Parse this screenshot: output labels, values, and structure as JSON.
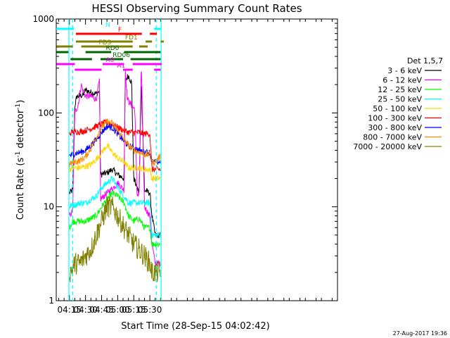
{
  "chart_data": {
    "type": "line",
    "title": "HESSI Observing Summary Count Rates",
    "xlabel": "Start Time (28-Sep-15 04:02:42)",
    "ylabel_pre": "Count Rate (s",
    "ylabel_sup1": "-1",
    "ylabel_mid": " detector",
    "ylabel_sup2": "-1",
    "ylabel_post": ")",
    "ylog": true,
    "ylim": [
      1,
      1000
    ],
    "xlim_min": [
      242.7,
      505
    ],
    "ytick_labels": [
      "1",
      "10",
      "100",
      "1000"
    ],
    "xtick_values": [
      255,
      270,
      285,
      300,
      315,
      330
    ],
    "xtick_labels": [
      "04:15",
      "04:30",
      "04:45",
      "05:00",
      "05:15",
      "05:30"
    ],
    "legend_title": "Det 1,5,7",
    "data_start_min": 255,
    "series": [
      {
        "name": "3 - 6 keV",
        "color": "#000000",
        "values": [
          [
            255,
            14
          ],
          [
            258,
            15
          ],
          [
            260,
            120
          ],
          [
            262,
            150
          ],
          [
            268,
            155
          ],
          [
            270,
            175
          ],
          [
            275,
            165
          ],
          [
            280,
            160
          ],
          [
            283,
            170
          ],
          [
            284,
            22
          ],
          [
            290,
            23
          ],
          [
            295,
            25
          ],
          [
            300,
            22
          ],
          [
            306,
            20
          ],
          [
            307,
            220
          ],
          [
            310,
            250
          ],
          [
            313,
            210
          ],
          [
            315,
            20
          ],
          [
            320,
            14
          ],
          [
            322,
            220
          ],
          [
            325,
            15
          ],
          [
            330,
            14
          ],
          [
            332,
            8
          ],
          [
            335,
            5
          ],
          [
            340,
            5
          ]
        ]
      },
      {
        "name": "6 - 12 keV",
        "color": "#ff00ff",
        "values": [
          [
            255,
            8
          ],
          [
            258,
            9
          ],
          [
            260,
            100
          ],
          [
            263,
            120
          ],
          [
            266,
            200
          ],
          [
            269,
            155
          ],
          [
            272,
            150
          ],
          [
            275,
            150
          ],
          [
            280,
            140
          ],
          [
            283,
            220
          ],
          [
            284,
            12
          ],
          [
            290,
            14
          ],
          [
            296,
            16
          ],
          [
            300,
            18
          ],
          [
            306,
            15
          ],
          [
            307,
            300
          ],
          [
            309,
            140
          ],
          [
            314,
            115
          ],
          [
            316,
            110
          ],
          [
            318,
            14
          ],
          [
            320,
            13
          ],
          [
            322,
            350
          ],
          [
            325,
            10
          ],
          [
            330,
            8
          ],
          [
            332,
            4
          ],
          [
            335,
            2.5
          ],
          [
            340,
            2.5
          ]
        ]
      },
      {
        "name": "12 - 25 keV",
        "color": "#00ff00",
        "values": [
          [
            255,
            6
          ],
          [
            258,
            7
          ],
          [
            260,
            7
          ],
          [
            265,
            7
          ],
          [
            270,
            7
          ],
          [
            275,
            7.5
          ],
          [
            280,
            8
          ],
          [
            285,
            10
          ],
          [
            290,
            12
          ],
          [
            295,
            14
          ],
          [
            300,
            13
          ],
          [
            306,
            11
          ],
          [
            310,
            8
          ],
          [
            315,
            7
          ],
          [
            320,
            7.5
          ],
          [
            325,
            6
          ],
          [
            330,
            6
          ],
          [
            332,
            4
          ],
          [
            335,
            4
          ],
          [
            340,
            4
          ]
        ]
      },
      {
        "name": "25 - 50 keV",
        "color": "#00ffff",
        "values": [
          [
            255,
            10
          ],
          [
            258,
            10.5
          ],
          [
            260,
            10.5
          ],
          [
            265,
            11
          ],
          [
            270,
            11
          ],
          [
            275,
            12
          ],
          [
            280,
            13
          ],
          [
            285,
            16
          ],
          [
            290,
            18
          ],
          [
            295,
            20
          ],
          [
            300,
            16
          ],
          [
            306,
            13
          ],
          [
            310,
            11
          ],
          [
            315,
            11
          ],
          [
            320,
            11
          ],
          [
            325,
            11
          ],
          [
            330,
            11
          ],
          [
            332,
            5
          ],
          [
            335,
            5
          ],
          [
            340,
            5
          ]
        ]
      },
      {
        "name": "50 - 100 keV",
        "color": "#ffd700",
        "values": [
          [
            255,
            25
          ],
          [
            258,
            26
          ],
          [
            260,
            26
          ],
          [
            265,
            26
          ],
          [
            270,
            27
          ],
          [
            275,
            28
          ],
          [
            280,
            32
          ],
          [
            285,
            38
          ],
          [
            290,
            45
          ],
          [
            295,
            38
          ],
          [
            300,
            33
          ],
          [
            306,
            30
          ],
          [
            310,
            26
          ],
          [
            315,
            26
          ],
          [
            320,
            26
          ],
          [
            325,
            25
          ],
          [
            330,
            25
          ],
          [
            332,
            20
          ],
          [
            335,
            20
          ],
          [
            340,
            20
          ]
        ]
      },
      {
        "name": "100 - 300 keV",
        "color": "#ff0000",
        "values": [
          [
            255,
            60
          ],
          [
            258,
            63
          ],
          [
            260,
            63
          ],
          [
            265,
            63
          ],
          [
            270,
            65
          ],
          [
            275,
            68
          ],
          [
            280,
            72
          ],
          [
            285,
            76
          ],
          [
            290,
            80
          ],
          [
            295,
            75
          ],
          [
            300,
            70
          ],
          [
            306,
            65
          ],
          [
            310,
            62
          ],
          [
            315,
            62
          ],
          [
            320,
            62
          ],
          [
            325,
            60
          ],
          [
            330,
            60
          ],
          [
            332,
            25
          ],
          [
            335,
            25
          ],
          [
            340,
            25
          ]
        ]
      },
      {
        "name": "300 - 800 keV",
        "color": "#0000ff",
        "values": [
          [
            255,
            35
          ],
          [
            258,
            36
          ],
          [
            260,
            37
          ],
          [
            265,
            38
          ],
          [
            270,
            40
          ],
          [
            275,
            45
          ],
          [
            280,
            52
          ],
          [
            285,
            62
          ],
          [
            290,
            72
          ],
          [
            295,
            70
          ],
          [
            300,
            60
          ],
          [
            306,
            50
          ],
          [
            310,
            45
          ],
          [
            315,
            42
          ],
          [
            320,
            40
          ],
          [
            325,
            38
          ],
          [
            330,
            38
          ],
          [
            332,
            30
          ],
          [
            335,
            30
          ],
          [
            340,
            30
          ]
        ]
      },
      {
        "name": "800 - 7000 keV",
        "color": "#ff8c00",
        "values": [
          [
            255,
            28
          ],
          [
            258,
            30
          ],
          [
            260,
            30
          ],
          [
            265,
            31
          ],
          [
            270,
            34
          ],
          [
            275,
            42
          ],
          [
            280,
            55
          ],
          [
            285,
            70
          ],
          [
            290,
            80
          ],
          [
            295,
            78
          ],
          [
            300,
            65
          ],
          [
            306,
            52
          ],
          [
            310,
            45
          ],
          [
            315,
            40
          ],
          [
            320,
            38
          ],
          [
            325,
            36
          ],
          [
            330,
            36
          ],
          [
            332,
            30
          ],
          [
            335,
            30
          ],
          [
            340,
            35
          ]
        ]
      },
      {
        "name": "7000 - 20000 keV",
        "color": "#808000",
        "values": [
          [
            255,
            2
          ],
          [
            258,
            2.2
          ],
          [
            260,
            2.5
          ],
          [
            265,
            2.5
          ],
          [
            270,
            3
          ],
          [
            275,
            3.5
          ],
          [
            280,
            5
          ],
          [
            285,
            7
          ],
          [
            290,
            10
          ],
          [
            295,
            10
          ],
          [
            300,
            8
          ],
          [
            306,
            6
          ],
          [
            310,
            5
          ],
          [
            315,
            4
          ],
          [
            320,
            3.5
          ],
          [
            325,
            3
          ],
          [
            330,
            2.5
          ],
          [
            332,
            2
          ],
          [
            335,
            2
          ],
          [
            340,
            2
          ]
        ]
      }
    ],
    "flag_bars": [
      {
        "label": "N",
        "color": "#00ffff",
        "segments": [
          [
            242.7,
            259
          ],
          [
            334,
            340
          ]
        ]
      },
      {
        "label": "F",
        "color": "#ff0000",
        "segments": [
          [
            261,
            322.5
          ],
          [
            330,
            336.5
          ]
        ]
      },
      {
        "label": "FD1",
        "color": "#808000",
        "segments": [
          [
            261,
            314
          ],
          [
            326,
            332
          ],
          [
            340,
            343
          ]
        ]
      },
      {
        "label": "FD3",
        "color": "#808000",
        "segments": [
          [
            243,
            258
          ],
          [
            266,
            314
          ],
          [
            320,
            328
          ]
        ]
      },
      {
        "label": "RD0",
        "color": "#006400",
        "segments": [
          [
            243,
            254
          ],
          [
            270,
            294
          ],
          [
            306,
            340
          ]
        ]
      },
      {
        "label": "RD06",
        "color": "#006400",
        "segments": [
          [
            256,
            276
          ],
          [
            284,
            305
          ],
          [
            312,
            340
          ]
        ]
      },
      {
        "label": "A0",
        "color": "#ff00ff",
        "segments": [
          [
            243,
            260
          ],
          [
            286,
            306
          ],
          [
            314,
            341
          ]
        ]
      },
      {
        "label": "A1",
        "color": "#ff00ff",
        "segments": [
          [
            260,
            285
          ],
          [
            305,
            314
          ],
          [
            334,
            340
          ]
        ]
      }
    ],
    "saa_lines_min": [
      258,
      336
    ],
    "night_lines_min": [
      254.5,
      340.5
    ]
  },
  "footer": "27-Aug-2017 19:36"
}
